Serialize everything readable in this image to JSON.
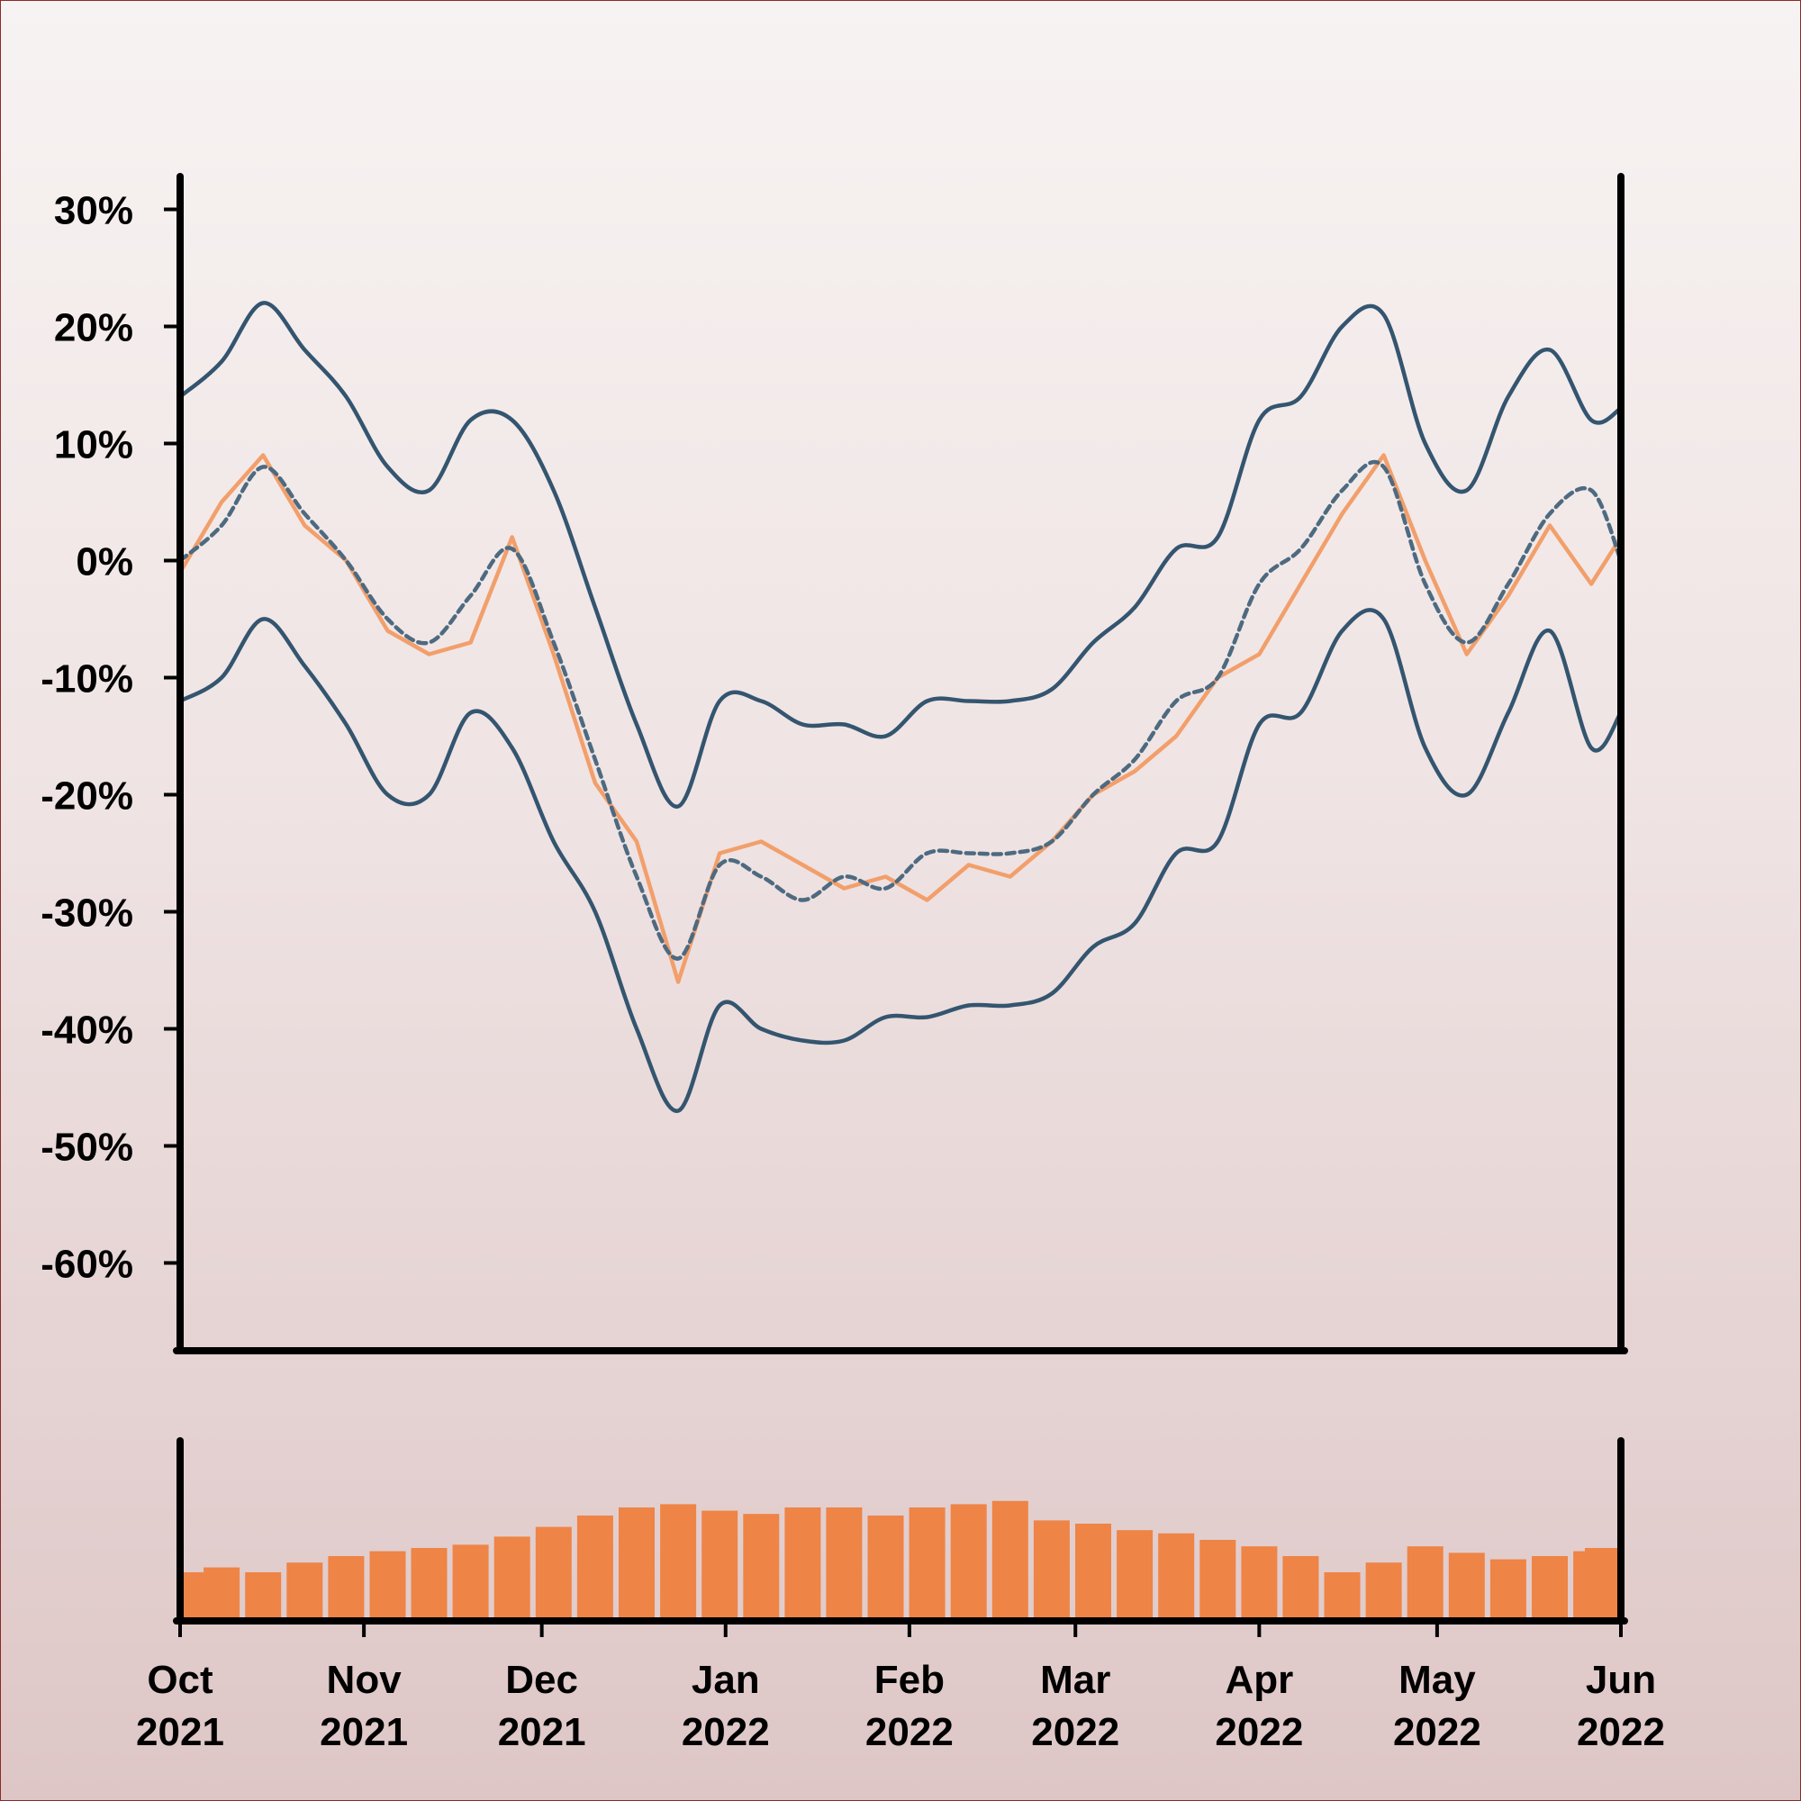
{
  "chart_data": [
    {
      "type": "line",
      "title": "",
      "xlabel": "",
      "ylabel": "",
      "ylim": [
        -0.675,
        0.325
      ],
      "y_ticks": [
        "30%",
        "20%",
        "10%",
        "0%",
        "-10%",
        "-20%",
        "-30%",
        "-40%",
        "-50%",
        "-60%"
      ],
      "y_tick_values": [
        0.3,
        0.2,
        0.1,
        0.0,
        -0.1,
        -0.2,
        -0.3,
        -0.4,
        -0.5,
        -0.6
      ],
      "x_range": [
        "2021-10-01",
        "2022-06-01"
      ],
      "colors": {
        "price": "#f29f6b",
        "bands": "#34556f",
        "axis": "#000000"
      },
      "series": [
        {
          "style": "solid-orange",
          "x": [
            "2021-10-01",
            "2021-10-08",
            "2021-10-15",
            "2021-10-22",
            "2021-10-29",
            "2021-11-05",
            "2021-11-12",
            "2021-11-19",
            "2021-11-26",
            "2021-12-03",
            "2021-12-10",
            "2021-12-17",
            "2021-12-24",
            "2021-12-31",
            "2022-01-07",
            "2022-01-14",
            "2022-01-21",
            "2022-01-28",
            "2022-02-04",
            "2022-02-11",
            "2022-02-18",
            "2022-02-25",
            "2022-03-04",
            "2022-03-11",
            "2022-03-18",
            "2022-03-25",
            "2022-04-01",
            "2022-04-08",
            "2022-04-15",
            "2022-04-22",
            "2022-04-29",
            "2022-05-06",
            "2022-05-13",
            "2022-05-20",
            "2022-05-27",
            "2022-06-01"
          ],
          "values": [
            -0.01,
            0.05,
            0.09,
            0.03,
            0.0,
            -0.06,
            -0.08,
            -0.07,
            0.02,
            -0.08,
            -0.19,
            -0.24,
            -0.36,
            -0.25,
            -0.24,
            -0.26,
            -0.28,
            -0.27,
            -0.29,
            -0.26,
            -0.27,
            -0.24,
            -0.2,
            -0.18,
            -0.15,
            -0.1,
            -0.08,
            -0.02,
            0.04,
            0.09,
            0.0,
            -0.08,
            -0.03,
            0.03,
            -0.02,
            0.02
          ]
        },
        {
          "style": "dashed-center",
          "x": [
            "2021-10-01",
            "2021-10-08",
            "2021-10-15",
            "2021-10-22",
            "2021-10-29",
            "2021-11-05",
            "2021-11-12",
            "2021-11-19",
            "2021-11-26",
            "2021-12-03",
            "2021-12-10",
            "2021-12-17",
            "2021-12-24",
            "2021-12-31",
            "2022-01-07",
            "2022-01-14",
            "2022-01-21",
            "2022-01-28",
            "2022-02-04",
            "2022-02-11",
            "2022-02-18",
            "2022-02-25",
            "2022-03-04",
            "2022-03-11",
            "2022-03-18",
            "2022-03-25",
            "2022-04-01",
            "2022-04-08",
            "2022-04-15",
            "2022-04-22",
            "2022-04-29",
            "2022-05-06",
            "2022-05-13",
            "2022-05-20",
            "2022-05-27",
            "2022-06-01"
          ],
          "values": [
            0.0,
            0.03,
            0.08,
            0.04,
            0.0,
            -0.05,
            -0.07,
            -0.03,
            0.01,
            -0.07,
            -0.17,
            -0.27,
            -0.34,
            -0.26,
            -0.27,
            -0.29,
            -0.27,
            -0.28,
            -0.25,
            -0.25,
            -0.25,
            -0.24,
            -0.2,
            -0.17,
            -0.12,
            -0.1,
            -0.02,
            0.01,
            0.06,
            0.08,
            -0.02,
            -0.07,
            -0.02,
            0.04,
            0.06,
            0.0
          ]
        },
        {
          "style": "solid-upper",
          "x": [
            "2021-10-01",
            "2021-10-08",
            "2021-10-15",
            "2021-10-22",
            "2021-10-29",
            "2021-11-05",
            "2021-11-12",
            "2021-11-19",
            "2021-11-26",
            "2021-12-03",
            "2021-12-10",
            "2021-12-17",
            "2021-12-24",
            "2021-12-31",
            "2022-01-07",
            "2022-01-14",
            "2022-01-21",
            "2022-01-28",
            "2022-02-04",
            "2022-02-11",
            "2022-02-18",
            "2022-02-25",
            "2022-03-04",
            "2022-03-11",
            "2022-03-18",
            "2022-03-25",
            "2022-04-01",
            "2022-04-08",
            "2022-04-15",
            "2022-04-22",
            "2022-04-29",
            "2022-05-06",
            "2022-05-13",
            "2022-05-20",
            "2022-05-27",
            "2022-06-01"
          ],
          "values": [
            0.14,
            0.17,
            0.22,
            0.18,
            0.14,
            0.08,
            0.06,
            0.12,
            0.12,
            0.06,
            -0.04,
            -0.14,
            -0.21,
            -0.12,
            -0.12,
            -0.14,
            -0.14,
            -0.15,
            -0.12,
            -0.12,
            -0.12,
            -0.11,
            -0.07,
            -0.04,
            0.01,
            0.02,
            0.12,
            0.14,
            0.2,
            0.21,
            0.1,
            0.06,
            0.14,
            0.18,
            0.12,
            0.13
          ]
        },
        {
          "style": "solid-lower",
          "x": [
            "2021-10-01",
            "2021-10-08",
            "2021-10-15",
            "2021-10-22",
            "2021-10-29",
            "2021-11-05",
            "2021-11-12",
            "2021-11-19",
            "2021-11-26",
            "2021-12-03",
            "2021-12-10",
            "2021-12-17",
            "2021-12-24",
            "2021-12-31",
            "2022-01-07",
            "2022-01-14",
            "2022-01-21",
            "2022-01-28",
            "2022-02-04",
            "2022-02-11",
            "2022-02-18",
            "2022-02-25",
            "2022-03-04",
            "2022-03-11",
            "2022-03-18",
            "2022-03-25",
            "2022-04-01",
            "2022-04-08",
            "2022-04-15",
            "2022-04-22",
            "2022-04-29",
            "2022-05-06",
            "2022-05-13",
            "2022-05-20",
            "2022-05-27",
            "2022-06-01"
          ],
          "values": [
            -0.12,
            -0.1,
            -0.05,
            -0.09,
            -0.14,
            -0.2,
            -0.2,
            -0.13,
            -0.16,
            -0.24,
            -0.3,
            -0.4,
            -0.47,
            -0.38,
            -0.4,
            -0.41,
            -0.41,
            -0.39,
            -0.39,
            -0.38,
            -0.38,
            -0.37,
            -0.33,
            -0.31,
            -0.25,
            -0.24,
            -0.14,
            -0.13,
            -0.06,
            -0.05,
            -0.16,
            -0.2,
            -0.13,
            -0.06,
            -0.16,
            -0.13
          ]
        }
      ]
    },
    {
      "type": "bar",
      "x_ticks": [
        "Oct\n2021",
        "Nov\n2021",
        "Dec\n2021",
        "Jan\n2022",
        "Feb\n2022",
        "Mar\n2022",
        "Apr\n2022",
        "May\n2022",
        "Jun\n2022"
      ],
      "x_tick_dates": [
        "2021-10-01",
        "2021-11-01",
        "2021-12-01",
        "2022-01-01",
        "2022-02-01",
        "2022-03-01",
        "2022-04-01",
        "2022-05-01",
        "2022-06-01"
      ],
      "ylim": [
        0,
        1
      ],
      "colors": {
        "bars": "#ee8446"
      },
      "x": [
        "2021-10-01",
        "2021-10-08",
        "2021-10-15",
        "2021-10-22",
        "2021-10-29",
        "2021-11-05",
        "2021-11-12",
        "2021-11-19",
        "2021-11-26",
        "2021-12-03",
        "2021-12-10",
        "2021-12-17",
        "2021-12-24",
        "2021-12-31",
        "2022-01-07",
        "2022-01-14",
        "2022-01-21",
        "2022-01-28",
        "2022-02-04",
        "2022-02-11",
        "2022-02-18",
        "2022-02-25",
        "2022-03-04",
        "2022-03-11",
        "2022-03-18",
        "2022-03-25",
        "2022-04-01",
        "2022-04-08",
        "2022-04-15",
        "2022-04-22",
        "2022-04-29",
        "2022-05-06",
        "2022-05-13",
        "2022-05-20",
        "2022-05-27",
        "2022-06-01"
      ],
      "values": [
        0.3,
        0.33,
        0.3,
        0.36,
        0.4,
        0.43,
        0.45,
        0.47,
        0.52,
        0.58,
        0.65,
        0.7,
        0.72,
        0.68,
        0.66,
        0.7,
        0.7,
        0.65,
        0.7,
        0.72,
        0.74,
        0.62,
        0.6,
        0.56,
        0.54,
        0.5,
        0.46,
        0.4,
        0.3,
        0.36,
        0.46,
        0.42,
        0.38,
        0.4,
        0.43,
        0.45
      ]
    }
  ]
}
